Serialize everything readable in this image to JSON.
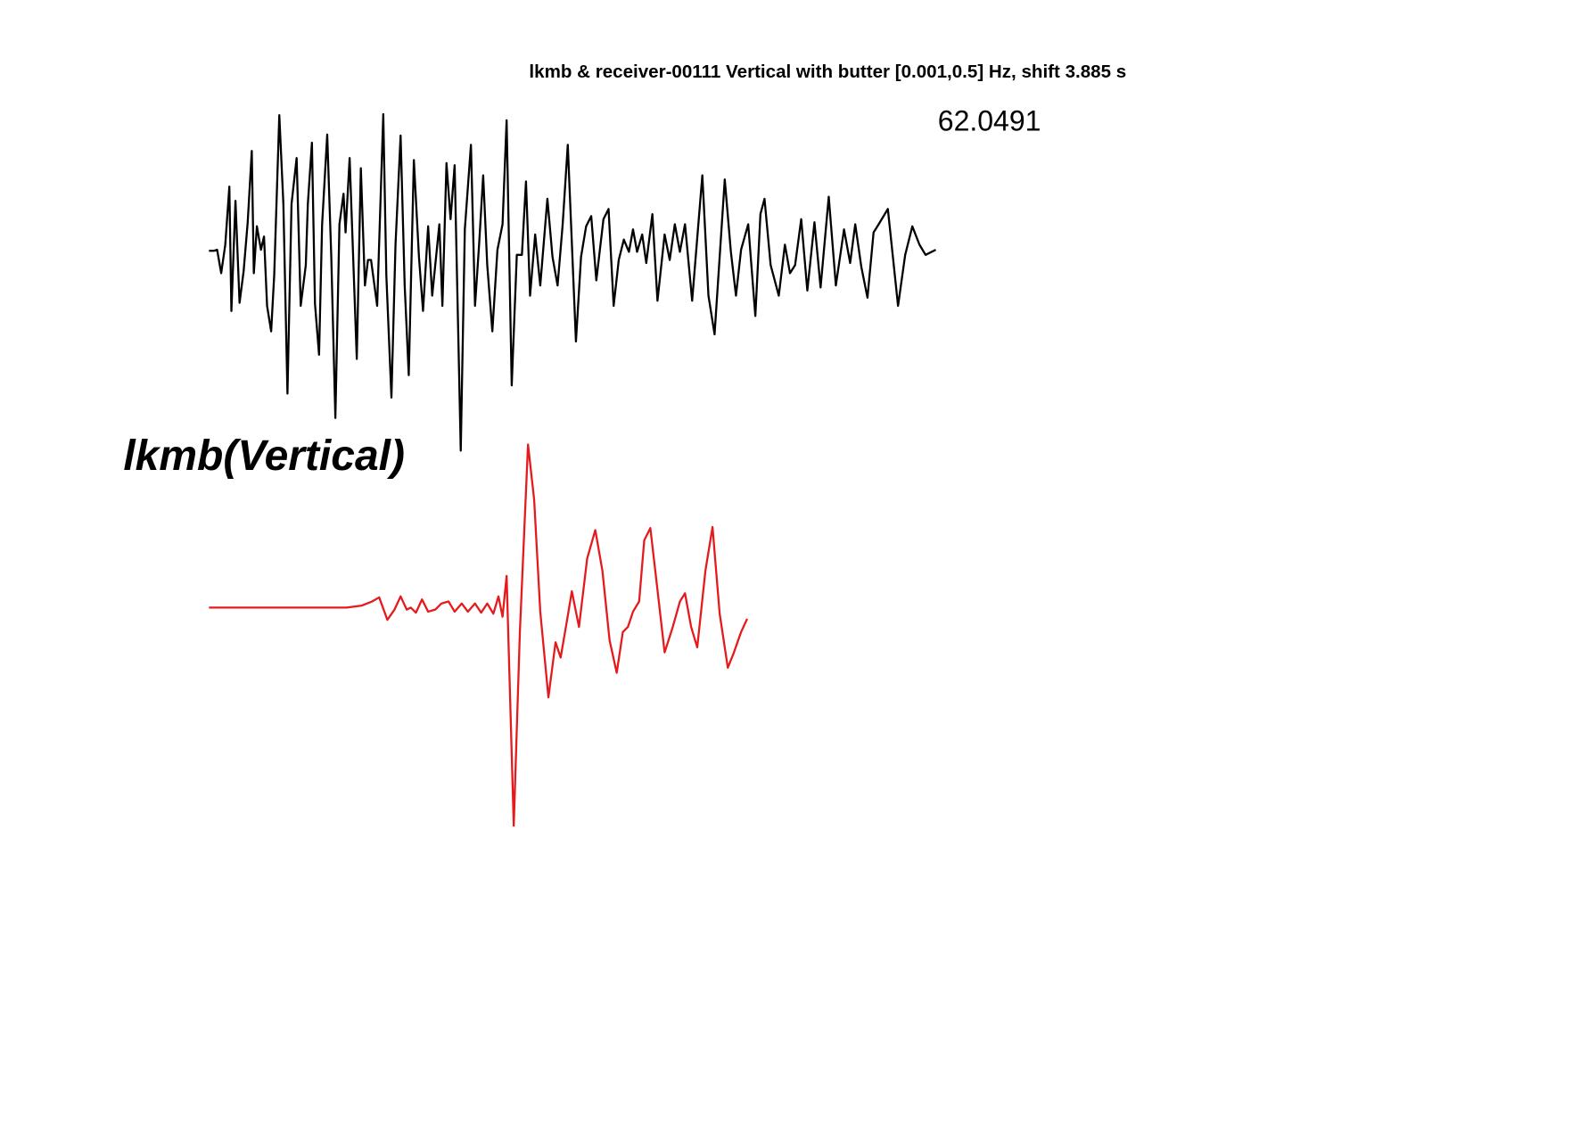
{
  "chart_data": [
    {
      "type": "line",
      "title": "lkmb & receiver-00111 Vertical with butter [0.001,0.5] Hz, shift 3.885 s",
      "annotation": "62.0491",
      "ylabel": "lkmb(Vertical)",
      "xlim": [
        0,
        720
      ],
      "ylim": [
        -250,
        250
      ],
      "series": [
        {
          "color": "#000000",
          "x": [
            0,
            5,
            8,
            12,
            16,
            20,
            22,
            26,
            30,
            34,
            38,
            42,
            44,
            47,
            51,
            54,
            57,
            61,
            64,
            69,
            73,
            77,
            81,
            86,
            90,
            95,
            97,
            101,
            104,
            108,
            111,
            116,
            120,
            124,
            128,
            132,
            134,
            138,
            145,
            149,
            153,
            156,
            159,
            165,
            171,
            174,
            179,
            183,
            188,
            192,
            196,
            201,
            206,
            210,
            215,
            219,
            226,
            229,
            233,
            237,
            241,
            247,
            251,
            257,
            261,
            265,
            269,
            273,
            278,
            283,
            288,
            292,
            297,
            302,
            307,
            311,
            315,
            320,
            325,
            332,
            337,
            342,
            347,
            352,
            360,
            365,
            370,
            375,
            380,
            387,
            392,
            397,
            402,
            407,
            412,
            416,
            420,
            425,
            429,
            435,
            440,
            447,
            452,
            457,
            462,
            467,
            474,
            484,
            490,
            496,
            506,
            512,
            517,
            522,
            529,
            536,
            541,
            545,
            551,
            559,
            565,
            570,
            575,
            581,
            587,
            594,
            600,
            608,
            615,
            623,
            629,
            634,
            640,
            646,
            652,
            657,
            666,
            676,
            683,
            690,
            697,
            703,
            713
          ],
          "values": [
            0,
            0,
            1,
            -22,
            6,
            63,
            -59,
            49,
            -51,
            -20,
            28,
            98,
            -22,
            24,
            1,
            14,
            -54,
            -79,
            -24,
            133,
            46,
            -140,
            46,
            91,
            -54,
            -14,
            46,
            106,
            -52,
            -102,
            26,
            114,
            -6,
            -164,
            26,
            56,
            18,
            91,
            -106,
            81,
            -34,
            -9,
            -9,
            -54,
            134,
            -24,
            -144,
            6,
            113,
            -34,
            -122,
            89,
            -6,
            -59,
            24,
            -44,
            26,
            -54,
            86,
            31,
            84,
            -196,
            21,
            104,
            -54,
            6,
            74,
            -14,
            -79,
            1,
            26,
            128,
            -132,
            -4,
            -4,
            68,
            -44,
            16,
            -34,
            51,
            -6,
            -34,
            26,
            104,
            -89,
            -6,
            24,
            34,
            -29,
            31,
            41,
            -54,
            -9,
            11,
            -1,
            21,
            -1,
            16,
            -12,
            36,
            -49,
            16,
            -9,
            26,
            -1,
            26,
            -49,
            74,
            -44,
            -82,
            70,
            -1,
            -44,
            1,
            26,
            -64,
            36,
            51,
            -14,
            -44,
            6,
            -22,
            -14,
            31,
            -39,
            28,
            -36,
            53,
            -34,
            21,
            -12,
            26,
            -16,
            -46,
            18,
            26,
            41,
            -54,
            -4,
            24,
            6,
            -4,
            1
          ]
        }
      ]
    },
    {
      "type": "line",
      "xlim": [
        0,
        720
      ],
      "ylim": [
        -250,
        250
      ],
      "series": [
        {
          "color": "#e41a1c",
          "x": [
            0,
            135,
            150,
            160,
            167,
            175,
            182,
            188,
            194,
            198,
            203,
            209,
            215,
            222,
            228,
            235,
            241,
            248,
            254,
            261,
            267,
            273,
            279,
            284,
            288,
            292,
            299,
            305,
            313,
            319,
            325,
            333,
            340,
            345,
            351,
            356,
            363,
            371,
            379,
            386,
            393,
            400,
            406,
            411,
            416,
            422,
            427,
            433,
            439,
            447,
            455,
            462,
            467,
            473,
            479,
            487,
            494,
            501,
            509,
            515,
            522,
            528
          ],
          "values": [
            0,
            0,
            2,
            6,
            10,
            -12,
            -2,
            11,
            -2,
            0,
            -5,
            8,
            -4,
            -2,
            4,
            6,
            -4,
            4,
            -4,
            4,
            -5,
            4,
            -6,
            11,
            -9,
            31,
            -214,
            -24,
            160,
            106,
            -4,
            -88,
            -34,
            -49,
            -14,
            16,
            -19,
            48,
            76,
            36,
            -32,
            -64,
            -24,
            -19,
            -4,
            6,
            66,
            78,
            26,
            -44,
            -19,
            6,
            14,
            -19,
            -39,
            36,
            79,
            -6,
            -59,
            -44,
            -24,
            -11
          ]
        }
      ]
    }
  ]
}
